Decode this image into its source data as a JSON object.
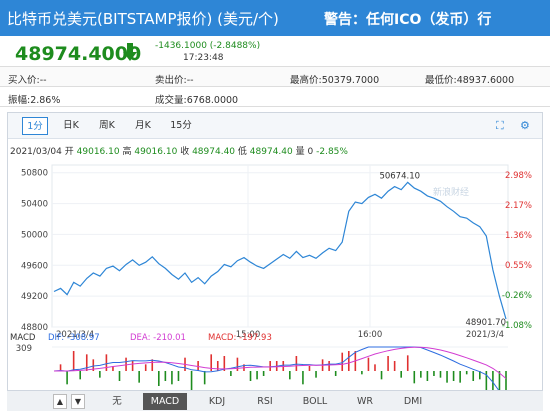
{
  "header": {
    "title": "比特币兑美元(BITSTAMP报价) (美元/个)",
    "warning": "警告：任何ICO（发币）行"
  },
  "quote": {
    "price": "48974.4000",
    "change": "-1436.1000 (-2.8488%)",
    "time": "17:23:48",
    "direction_icon": "down-arrow-icon",
    "color": "#1e8c1e"
  },
  "stats": {
    "bid_label": "买入价:",
    "bid": "--",
    "ask_label": "卖出价:",
    "ask": "--",
    "high_label": "最高价:",
    "high": "50379.7000",
    "low_label": "最低价:",
    "low": "48937.6000",
    "amp_label": "振幅:",
    "amp": "2.86%",
    "vol_label": "成交量:",
    "vol": "6768.0000"
  },
  "tabs": [
    "1分",
    "日K",
    "周K",
    "月K",
    "15分"
  ],
  "active_tab": "1分",
  "ohlc": {
    "date": "2021/03/04",
    "open_label": "开",
    "open": "49016.10",
    "high_label": "高",
    "high": "49016.10",
    "close_label": "收",
    "close": "48974.40",
    "low_label": "低",
    "low": "48974.40",
    "vol_label": "量",
    "vol": "0",
    "pct": "-2.85%"
  },
  "chart_data": {
    "type": "line",
    "title": "",
    "y_ticks": [
      "50800",
      "50400",
      "50000",
      "49600",
      "49200",
      "48800"
    ],
    "right_ticks": [
      "2.98%",
      "2.17%",
      "1.36%",
      "0.55%",
      "-0.26%",
      "-1.08%"
    ],
    "x_ticks": [
      "2021/3/4",
      "15:00",
      "16:00",
      "2021/3/4"
    ],
    "ylim": [
      48800,
      50900
    ],
    "peak_label": "50674.10",
    "low_label": "48901.70",
    "watermark": "新浪财经",
    "series": [
      {
        "values": [
          49260,
          49300,
          49220,
          49380,
          49330,
          49430,
          49500,
          49460,
          49560,
          49590,
          49530,
          49610,
          49670,
          49600,
          49640,
          49710,
          49620,
          49560,
          49480,
          49420,
          49500,
          49380,
          49440,
          49360,
          49460,
          49520,
          49610,
          49580,
          49660,
          49700,
          49640,
          49590,
          49560,
          49620,
          49680,
          49740,
          49690,
          49780,
          49700,
          49730,
          49690,
          49760,
          49820,
          49790,
          49900,
          50300,
          50420,
          50400,
          50480,
          50520,
          50470,
          50560,
          50620,
          50580,
          50674,
          50600,
          50560,
          50500,
          50470,
          50430,
          50360,
          50300,
          50230,
          50210,
          50150,
          50100,
          49980,
          49540,
          49200,
          48902
        ]
      }
    ]
  },
  "macd": {
    "label": "MACD",
    "dif_label": "DIF: -308.97",
    "dea_label": "DEA: -210.01",
    "macd_label": "MACD: -197.93",
    "top": "309",
    "bottom": "-309",
    "dif_color": "#2e6de0",
    "dea_color": "#d23cd2"
  },
  "indicators": [
    "无",
    "MACD",
    "KDJ",
    "RSI",
    "BOLL",
    "WR",
    "DMI"
  ],
  "active_indicator": "MACD",
  "colors": {
    "header": "#2e86d6",
    "up": "#e03030",
    "down": "#1e8c1e",
    "line": "#2e86d6"
  }
}
